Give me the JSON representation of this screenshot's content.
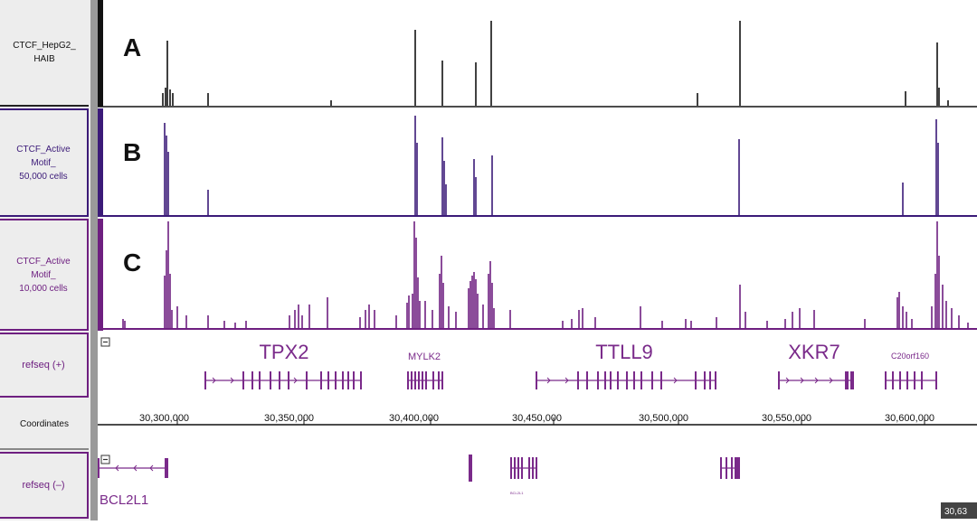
{
  "tracks": [
    {
      "panel": "A",
      "label": "CTCF_HepG2_\nHAIB",
      "color": "#111111"
    },
    {
      "panel": "B",
      "label": "CTCF_Active\nMotif_\n50,000 cells",
      "color": "#3b1a78"
    },
    {
      "panel": "C",
      "label": "CTCF_Active\nMotif_\n10,000 cells",
      "color": "#6e1f80"
    }
  ],
  "annotation_tracks": {
    "refseq_plus": {
      "label": "refseq (+)",
      "toggle": "⊟"
    },
    "coordinates": {
      "label": "Coordinates"
    },
    "refseq_minus": {
      "label": "refseq (–)",
      "toggle": "⊟"
    }
  },
  "coordinate_ticks": [
    "30,300,000",
    "30,350,000",
    "30,400,000",
    "30,450,000",
    "30,500,000",
    "30,550,000",
    "30,600,000"
  ],
  "coordinate_end_label": "30,63",
  "genes_plus": [
    "TPX2",
    "MYLK2",
    "TTLL9",
    "XKR7",
    "C20orf160"
  ],
  "genes_minus": [
    "BCL2L1",
    "BCL2L1"
  ],
  "colors": {
    "track_a": "#111111",
    "track_b": "#3b1a78",
    "track_c": "#6e1f80",
    "gene": "#7a2a8a",
    "label_panel": "#ededed"
  }
}
